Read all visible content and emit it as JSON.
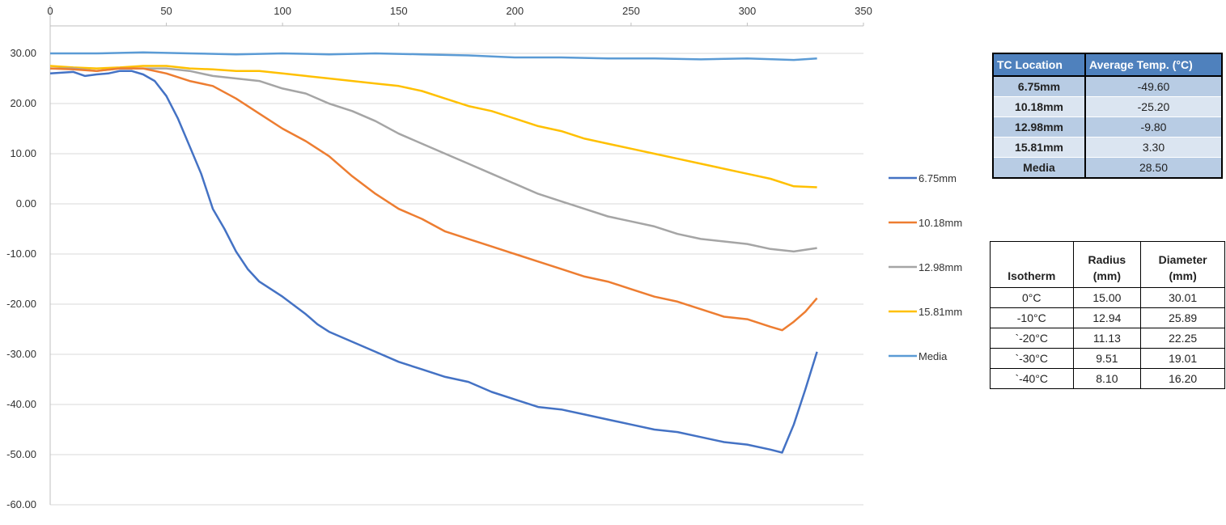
{
  "chart_data": {
    "type": "line",
    "title": "",
    "xlabel": "",
    "ylabel": "",
    "xlim": [
      0,
      350
    ],
    "ylim": [
      -60,
      40
    ],
    "x_ticks": [
      "0",
      "50",
      "100",
      "150",
      "200",
      "250",
      "300",
      "350"
    ],
    "x_tick_values": [
      0,
      50,
      100,
      150,
      200,
      250,
      300,
      350
    ],
    "y_ticks": [
      "30.00",
      "20.00",
      "10.00",
      "0.00",
      "-10.00",
      "-20.00",
      "-30.00",
      "-40.00",
      "-50.00",
      "-60.00"
    ],
    "y_tick_values": [
      30,
      20,
      10,
      0,
      -10,
      -20,
      -30,
      -40,
      -50,
      -60
    ],
    "grid": "horizontal",
    "legend_position": "right",
    "series": [
      {
        "name": "6.75mm",
        "color": "#4472c4",
        "points": [
          [
            0,
            26
          ],
          [
            10,
            26.3
          ],
          [
            15,
            25.5
          ],
          [
            20,
            25.8
          ],
          [
            25,
            26
          ],
          [
            30,
            26.5
          ],
          [
            35,
            26.5
          ],
          [
            40,
            25.8
          ],
          [
            45,
            24.5
          ],
          [
            50,
            21.5
          ],
          [
            55,
            17
          ],
          [
            60,
            11.5
          ],
          [
            65,
            6
          ],
          [
            70,
            -1
          ],
          [
            75,
            -5
          ],
          [
            80,
            -9.5
          ],
          [
            85,
            -13
          ],
          [
            90,
            -15.5
          ],
          [
            100,
            -18.5
          ],
          [
            110,
            -22
          ],
          [
            115,
            -24
          ],
          [
            120,
            -25.5
          ],
          [
            130,
            -27.5
          ],
          [
            140,
            -29.5
          ],
          [
            150,
            -31.5
          ],
          [
            160,
            -33
          ],
          [
            170,
            -34.5
          ],
          [
            180,
            -35.5
          ],
          [
            190,
            -37.5
          ],
          [
            200,
            -39
          ],
          [
            210,
            -40.5
          ],
          [
            220,
            -41
          ],
          [
            230,
            -42
          ],
          [
            240,
            -43
          ],
          [
            250,
            -44
          ],
          [
            260,
            -45
          ],
          [
            270,
            -45.5
          ],
          [
            280,
            -46.5
          ],
          [
            290,
            -47.5
          ],
          [
            300,
            -48
          ],
          [
            310,
            -49
          ],
          [
            315,
            -49.6
          ],
          [
            320,
            -44
          ],
          [
            325,
            -37
          ],
          [
            330,
            -29.5
          ]
        ]
      },
      {
        "name": "10.18mm",
        "color": "#ed7d31",
        "points": [
          [
            0,
            27
          ],
          [
            10,
            26.8
          ],
          [
            20,
            26.5
          ],
          [
            30,
            27
          ],
          [
            40,
            27
          ],
          [
            50,
            26
          ],
          [
            60,
            24.5
          ],
          [
            70,
            23.5
          ],
          [
            80,
            21
          ],
          [
            90,
            18
          ],
          [
            100,
            15
          ],
          [
            110,
            12.5
          ],
          [
            120,
            9.5
          ],
          [
            130,
            5.5
          ],
          [
            140,
            2
          ],
          [
            150,
            -1
          ],
          [
            160,
            -3
          ],
          [
            170,
            -5.5
          ],
          [
            180,
            -7
          ],
          [
            190,
            -8.5
          ],
          [
            200,
            -10
          ],
          [
            210,
            -11.5
          ],
          [
            220,
            -13
          ],
          [
            230,
            -14.5
          ],
          [
            240,
            -15.5
          ],
          [
            250,
            -17
          ],
          [
            260,
            -18.5
          ],
          [
            270,
            -19.5
          ],
          [
            280,
            -21
          ],
          [
            290,
            -22.5
          ],
          [
            300,
            -23
          ],
          [
            310,
            -24.5
          ],
          [
            315,
            -25.2
          ],
          [
            320,
            -23.5
          ],
          [
            325,
            -21.5
          ],
          [
            330,
            -18.8
          ]
        ]
      },
      {
        "name": "12.98mm",
        "color": "#a5a5a5",
        "points": [
          [
            0,
            27
          ],
          [
            10,
            27
          ],
          [
            20,
            26.5
          ],
          [
            30,
            27
          ],
          [
            40,
            27
          ],
          [
            50,
            27
          ],
          [
            60,
            26.5
          ],
          [
            70,
            25.5
          ],
          [
            80,
            25
          ],
          [
            90,
            24.5
          ],
          [
            100,
            23
          ],
          [
            110,
            22
          ],
          [
            120,
            20
          ],
          [
            130,
            18.5
          ],
          [
            140,
            16.5
          ],
          [
            150,
            14
          ],
          [
            160,
            12
          ],
          [
            170,
            10
          ],
          [
            180,
            8
          ],
          [
            190,
            6
          ],
          [
            200,
            4
          ],
          [
            210,
            2
          ],
          [
            220,
            0.5
          ],
          [
            230,
            -1
          ],
          [
            240,
            -2.5
          ],
          [
            250,
            -3.5
          ],
          [
            260,
            -4.5
          ],
          [
            270,
            -6
          ],
          [
            280,
            -7
          ],
          [
            290,
            -7.5
          ],
          [
            300,
            -8
          ],
          [
            310,
            -9
          ],
          [
            320,
            -9.5
          ],
          [
            330,
            -8.8
          ]
        ]
      },
      {
        "name": "15.81mm",
        "color": "#ffc000",
        "points": [
          [
            0,
            27.5
          ],
          [
            10,
            27.2
          ],
          [
            20,
            27
          ],
          [
            30,
            27.2
          ],
          [
            40,
            27.5
          ],
          [
            50,
            27.5
          ],
          [
            60,
            27
          ],
          [
            70,
            26.8
          ],
          [
            80,
            26.5
          ],
          [
            90,
            26.5
          ],
          [
            100,
            26
          ],
          [
            110,
            25.5
          ],
          [
            120,
            25
          ],
          [
            130,
            24.5
          ],
          [
            140,
            24
          ],
          [
            150,
            23.5
          ],
          [
            160,
            22.5
          ],
          [
            170,
            21
          ],
          [
            180,
            19.5
          ],
          [
            190,
            18.5
          ],
          [
            200,
            17
          ],
          [
            210,
            15.5
          ],
          [
            220,
            14.5
          ],
          [
            230,
            13
          ],
          [
            240,
            12
          ],
          [
            250,
            11
          ],
          [
            260,
            10
          ],
          [
            270,
            9
          ],
          [
            280,
            8
          ],
          [
            290,
            7
          ],
          [
            300,
            6
          ],
          [
            310,
            5
          ],
          [
            320,
            3.5
          ],
          [
            330,
            3.3
          ]
        ]
      },
      {
        "name": "Media",
        "color": "#5b9bd5",
        "points": [
          [
            0,
            30
          ],
          [
            20,
            30
          ],
          [
            40,
            30.2
          ],
          [
            60,
            30
          ],
          [
            80,
            29.8
          ],
          [
            100,
            30
          ],
          [
            120,
            29.8
          ],
          [
            140,
            30
          ],
          [
            160,
            29.8
          ],
          [
            180,
            29.6
          ],
          [
            200,
            29.2
          ],
          [
            220,
            29.2
          ],
          [
            240,
            29
          ],
          [
            260,
            29
          ],
          [
            280,
            28.8
          ],
          [
            300,
            29
          ],
          [
            320,
            28.7
          ],
          [
            330,
            29
          ]
        ]
      }
    ]
  },
  "tc_table": {
    "headers": [
      "TC Location",
      "Average Temp. (°C)"
    ],
    "rows": [
      {
        "location": "6.75mm",
        "temp": "-49.60"
      },
      {
        "location": "10.18mm",
        "temp": "-25.20"
      },
      {
        "location": "12.98mm",
        "temp": "-9.80"
      },
      {
        "location": "15.81mm",
        "temp": "3.30"
      },
      {
        "location": "Media",
        "temp": "28.50"
      }
    ]
  },
  "isotherm_table": {
    "headers": {
      "isotherm": "Isotherm",
      "radius_line1": "Radius",
      "radius_line2": "(mm)",
      "diameter_line1": "Diameter",
      "diameter_line2": "(mm)"
    },
    "rows": [
      {
        "isotherm": "0°C",
        "radius": "15.00",
        "diameter": "30.01"
      },
      {
        "isotherm": "-10°C",
        "radius": "12.94",
        "diameter": "25.89"
      },
      {
        "isotherm": "`-20°C",
        "radius": "11.13",
        "diameter": "22.25"
      },
      {
        "isotherm": "`-30°C",
        "radius": "9.51",
        "diameter": "19.01"
      },
      {
        "isotherm": "`-40°C",
        "radius": "8.10",
        "diameter": "16.20"
      }
    ]
  }
}
